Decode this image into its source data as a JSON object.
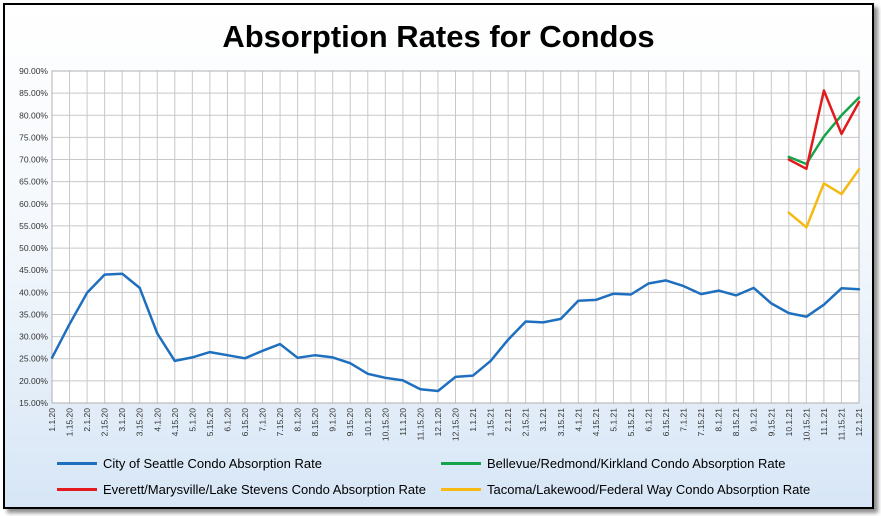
{
  "chart_data": {
    "type": "line",
    "title": "Absorption Rates for Condos",
    "xlabel": "",
    "ylabel": "",
    "ylim": [
      15,
      90
    ],
    "yticks": [
      "15.00%",
      "20.00%",
      "25.00%",
      "30.00%",
      "35.00%",
      "40.00%",
      "45.00%",
      "50.00%",
      "55.00%",
      "60.00%",
      "65.00%",
      "70.00%",
      "75.00%",
      "80.00%",
      "85.00%",
      "90.00%"
    ],
    "grid": true,
    "legend_position": "bottom",
    "categories": [
      "1.1.20",
      "1.15.20",
      "2.1.20",
      "2.15.20",
      "3.1.20",
      "3.15.20",
      "4.1.20",
      "4.15.20",
      "5.1.20",
      "5.15.20",
      "6.1.20",
      "6.15.20",
      "7.1.20",
      "7.15.20",
      "8.1.20",
      "8.15.20",
      "9.1.20",
      "9.15.20",
      "10.1.20",
      "10.15.20",
      "11.1.20",
      "11.15.20",
      "12.1.20",
      "12.15.20",
      "1.1.21",
      "1.15.21",
      "2.1.21",
      "2.15.21",
      "3.1.21",
      "3.15.21",
      "4.1.21",
      "4.15.21",
      "5.1.21",
      "5.15.21",
      "6.1.21",
      "6.15.21",
      "7.1.21",
      "7.15.21",
      "8.1.21",
      "8.15.21",
      "9.1.21",
      "9.15.21",
      "10.1.21",
      "10.15.21",
      "11.1.21",
      "11.15.21",
      "12.1.21"
    ],
    "series": [
      {
        "name": "City of Seattle Condo Absorption Rate",
        "color": "#1f6fbf",
        "values": [
          25.2,
          32.8,
          39.9,
          44.0,
          44.2,
          41.0,
          30.7,
          24.5,
          25.3,
          26.5,
          25.8,
          25.1,
          26.8,
          28.3,
          25.2,
          25.8,
          25.3,
          24.0,
          21.6,
          20.7,
          20.1,
          18.1,
          17.7,
          20.9,
          21.2,
          24.5,
          29.3,
          33.4,
          33.2,
          34.0,
          38.1,
          38.3,
          39.7,
          39.5,
          42.0,
          42.7,
          41.4,
          39.6,
          40.4,
          39.3,
          41.0,
          37.5,
          35.3,
          34.5,
          37.2,
          40.9,
          40.7
        ]
      },
      {
        "name": "Bellevue/Redmond/Kirkland Condo Absorption Rate",
        "color": "#17a34a",
        "values": [
          null,
          null,
          null,
          null,
          null,
          null,
          null,
          null,
          null,
          null,
          null,
          null,
          null,
          null,
          null,
          null,
          null,
          null,
          null,
          null,
          null,
          null,
          null,
          null,
          null,
          null,
          null,
          null,
          null,
          null,
          null,
          null,
          null,
          null,
          null,
          null,
          null,
          null,
          null,
          null,
          null,
          null,
          70.6,
          69.0,
          75.2,
          80.0,
          84.0
        ]
      },
      {
        "name": "Everett/Marysville/Lake Stevens Condo Absorption Rate",
        "color": "#e31a1c",
        "values": [
          null,
          null,
          null,
          null,
          null,
          null,
          null,
          null,
          null,
          null,
          null,
          null,
          null,
          null,
          null,
          null,
          null,
          null,
          null,
          null,
          null,
          null,
          null,
          null,
          null,
          null,
          null,
          null,
          null,
          null,
          null,
          null,
          null,
          null,
          null,
          null,
          null,
          null,
          null,
          null,
          null,
          null,
          70.0,
          67.9,
          85.6,
          75.8,
          83.0
        ]
      },
      {
        "name": "Tacoma/Lakewood/Federal Way Condo Absorption Rate",
        "color": "#f5b90f",
        "values": [
          null,
          null,
          null,
          null,
          null,
          null,
          null,
          null,
          null,
          null,
          null,
          null,
          null,
          null,
          null,
          null,
          null,
          null,
          null,
          null,
          null,
          null,
          null,
          null,
          null,
          null,
          null,
          null,
          null,
          null,
          null,
          null,
          null,
          null,
          null,
          null,
          null,
          null,
          null,
          null,
          null,
          null,
          58.0,
          54.7,
          64.6,
          62.2,
          67.8
        ]
      }
    ]
  }
}
